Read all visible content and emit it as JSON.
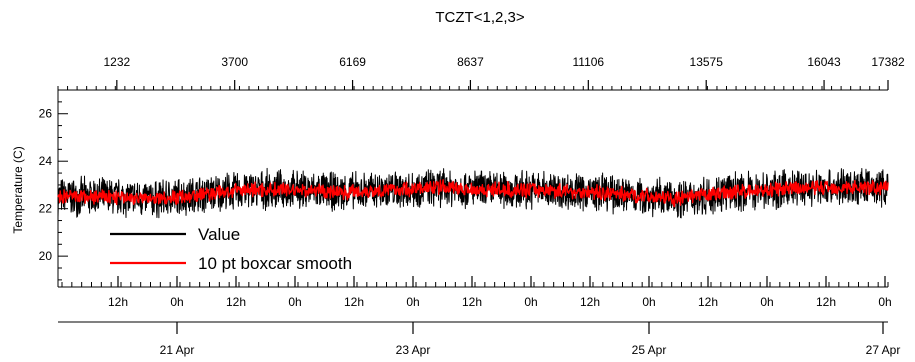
{
  "chart_data": {
    "type": "line",
    "title": "TCZT<1,2,3>",
    "ylabel": "Temperature (C)",
    "ylim": [
      18.7,
      27.0
    ],
    "yticks": [
      20,
      22,
      24,
      26
    ],
    "top_axis": {
      "ticks": [
        1232,
        3700,
        6169,
        8637,
        11106,
        13575,
        16043,
        17382
      ],
      "range": [
        0,
        17382
      ]
    },
    "hour_axis": {
      "labels": [
        "12h",
        "0h",
        "12h",
        "0h",
        "12h",
        "0h",
        "12h",
        "0h",
        "12h",
        "0h",
        "12h",
        "0h",
        "12h",
        "0h"
      ]
    },
    "date_axis": {
      "labels": [
        "21 Apr",
        "23 Apr",
        "25 Apr",
        "27 Apr"
      ]
    },
    "series": [
      {
        "name": "Value",
        "color": "#000000",
        "x": [
          0,
          1000,
          2000,
          3000,
          4000,
          5000,
          6000,
          7000,
          8000,
          9000,
          10000,
          11000,
          12000,
          13000,
          14000,
          15000,
          16000,
          17000,
          17382
        ],
        "center": [
          22.5,
          22.5,
          22.4,
          22.6,
          22.8,
          22.8,
          22.7,
          22.8,
          22.9,
          22.8,
          22.8,
          22.7,
          22.6,
          22.4,
          22.7,
          22.8,
          22.9,
          22.9,
          22.9
        ],
        "noise_band": 0.9
      },
      {
        "name": "10 pt boxcar smooth",
        "color": "#ff0000",
        "x": [
          0,
          1000,
          2000,
          3000,
          4000,
          5000,
          6000,
          7000,
          8000,
          9000,
          10000,
          11000,
          12000,
          13000,
          14000,
          15000,
          16000,
          17000,
          17382
        ],
        "center": [
          22.5,
          22.5,
          22.4,
          22.6,
          22.8,
          22.8,
          22.7,
          22.8,
          22.9,
          22.8,
          22.8,
          22.7,
          22.6,
          22.4,
          22.7,
          22.8,
          22.9,
          22.9,
          22.9
        ],
        "noise_band": 0.35
      }
    ],
    "legend": {
      "position": "bottom-left"
    }
  }
}
